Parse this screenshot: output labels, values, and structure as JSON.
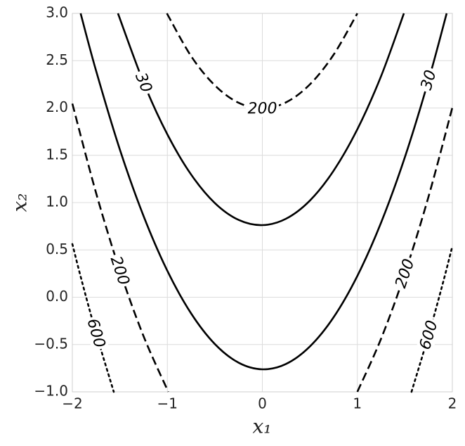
{
  "chart_data": {
    "type": "contour",
    "xlabel": "x₁",
    "ylabel": "x₂",
    "xlim": [
      -2,
      2
    ],
    "ylim": [
      -1,
      3
    ],
    "xticks": [
      {
        "value": -2,
        "label": "−2"
      },
      {
        "value": -1,
        "label": "−1"
      },
      0,
      1,
      2
    ],
    "yticks": [
      {
        "value": -1,
        "label": "−1.0"
      },
      {
        "value": -0.5,
        "label": "−0.5"
      },
      {
        "value": 0,
        "label": "0.0"
      },
      {
        "value": 0.5,
        "label": "0.5"
      },
      {
        "value": 1,
        "label": "1.0"
      },
      {
        "value": 1.5,
        "label": "1.5"
      },
      {
        "value": 2,
        "label": "2.0"
      },
      {
        "value": 2.5,
        "label": "2.5"
      },
      {
        "value": 3,
        "label": "3.0"
      }
    ],
    "grid": true,
    "color": "#000000",
    "series": [
      {
        "level": 30,
        "style": "solid",
        "x": [
          -1.52,
          -1.25,
          -1,
          -0.75,
          -0.5,
          -0.25,
          0,
          0.25,
          0.5,
          0.75,
          1,
          1.25,
          1.49
        ],
        "y": [
          3.0,
          2.268,
          1.721,
          1.297,
          0.995,
          0.817,
          0.762,
          0.83,
          1.021,
          1.337,
          1.775,
          2.337,
          3.0
        ]
      },
      {
        "level": 30,
        "style": "solid",
        "x": [
          -1.913,
          -1.75,
          -1.5,
          -1.25,
          -1,
          -0.75,
          -0.5,
          -0.25,
          0,
          0.25,
          0.5,
          0.75,
          1,
          1.25,
          1.5,
          1.75,
          1.94
        ],
        "y": [
          3.0,
          2.393,
          1.561,
          0.857,
          0.279,
          -0.171,
          -0.495,
          -0.692,
          -0.762,
          -0.705,
          -0.521,
          -0.212,
          0.225,
          0.789,
          1.479,
          2.296,
          3.0
        ]
      },
      {
        "level": 200,
        "style": "dashed",
        "x": [
          -1.005,
          -0.75,
          -0.5,
          -0.25,
          0,
          0.25,
          0.5,
          0.75,
          1
        ],
        "y": [
          3.0,
          2.548,
          2.239,
          2.055,
          1.995,
          2.06,
          2.249,
          2.563,
          3.0
        ]
      },
      {
        "level": 200,
        "style": "dashed",
        "x": [
          -2,
          -1.75,
          -1.5,
          -1.25,
          -0.99,
          null,
          1.0,
          1.25,
          1.5,
          1.75,
          2
        ],
        "y": [
          2.046,
          1.101,
          0.281,
          -0.413,
          -1.0,
          null,
          -1.0,
          -0.438,
          0.251,
          1.066,
          2.005
        ]
      },
      {
        "level": 600,
        "style": "dotted",
        "x": [
          -2,
          -1.9,
          -1.75,
          -1.564,
          null,
          1.57,
          1.75,
          1.9,
          2
        ],
        "y": [
          0.562,
          0.17,
          -0.38,
          -1.0,
          null,
          -1.0,
          -0.4,
          0.148,
          0.539
        ]
      }
    ]
  }
}
